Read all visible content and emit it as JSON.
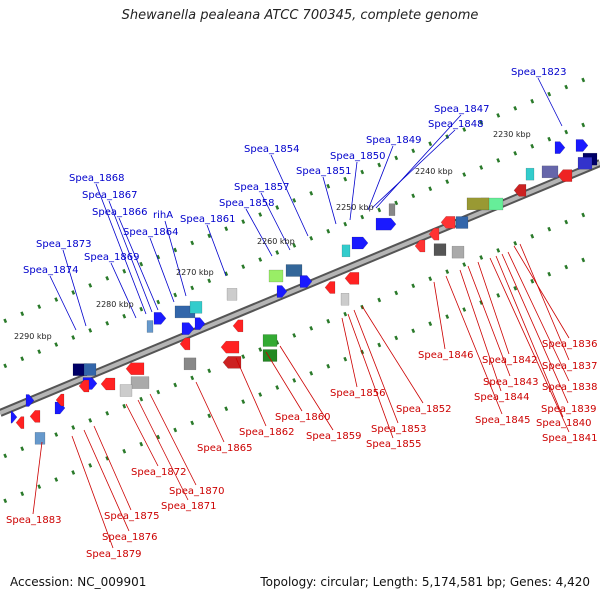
{
  "header": {
    "title": "Shewanella pealeana ATCC 700345, complete genome"
  },
  "footer": {
    "accession": "Accession: NC_009901",
    "topology": "Topology: circular; Length: 5,174,581 bp; Genes: 4,420"
  },
  "colors": {
    "forward_label": "#0000cc",
    "reverse_label": "#cc0000",
    "backbone": "#888888",
    "tick": "#2a7a2a"
  },
  "scale_labels": [
    "2230 kbp",
    "2240 kbp",
    "2250 kbp",
    "2260 kbp",
    "2270 kbp",
    "2280 kbp",
    "2290 kbp"
  ],
  "upper_labels": [
    "Spea_1823",
    "Spea_1847",
    "Spea_1848",
    "Spea_1849",
    "Spea_1850",
    "Spea_1851",
    "Spea_1854",
    "Spea_1857",
    "Spea_1858",
    "Spea_1861",
    "rihA",
    "Spea_1864",
    "Spea_1866",
    "Spea_1867",
    "Spea_1868",
    "Spea_1869",
    "Spea_1873",
    "Spea_1874"
  ],
  "lower_labels": [
    "Spea_1836",
    "Spea_1837",
    "Spea_1838",
    "Spea_1839",
    "Spea_1840",
    "Spea_1841",
    "Spea_1842",
    "Spea_1843",
    "Spea_1844",
    "Spea_1845",
    "Spea_1846",
    "Spea_1852",
    "Spea_1853",
    "Spea_1855",
    "Spea_1856",
    "Spea_1859",
    "Spea_1860",
    "Spea_1862",
    "Spea_1865",
    "Spea_1870",
    "Spea_1871",
    "Spea_1872",
    "Spea_1875",
    "Spea_1876",
    "Spea_1879",
    "Spea_1883"
  ]
}
